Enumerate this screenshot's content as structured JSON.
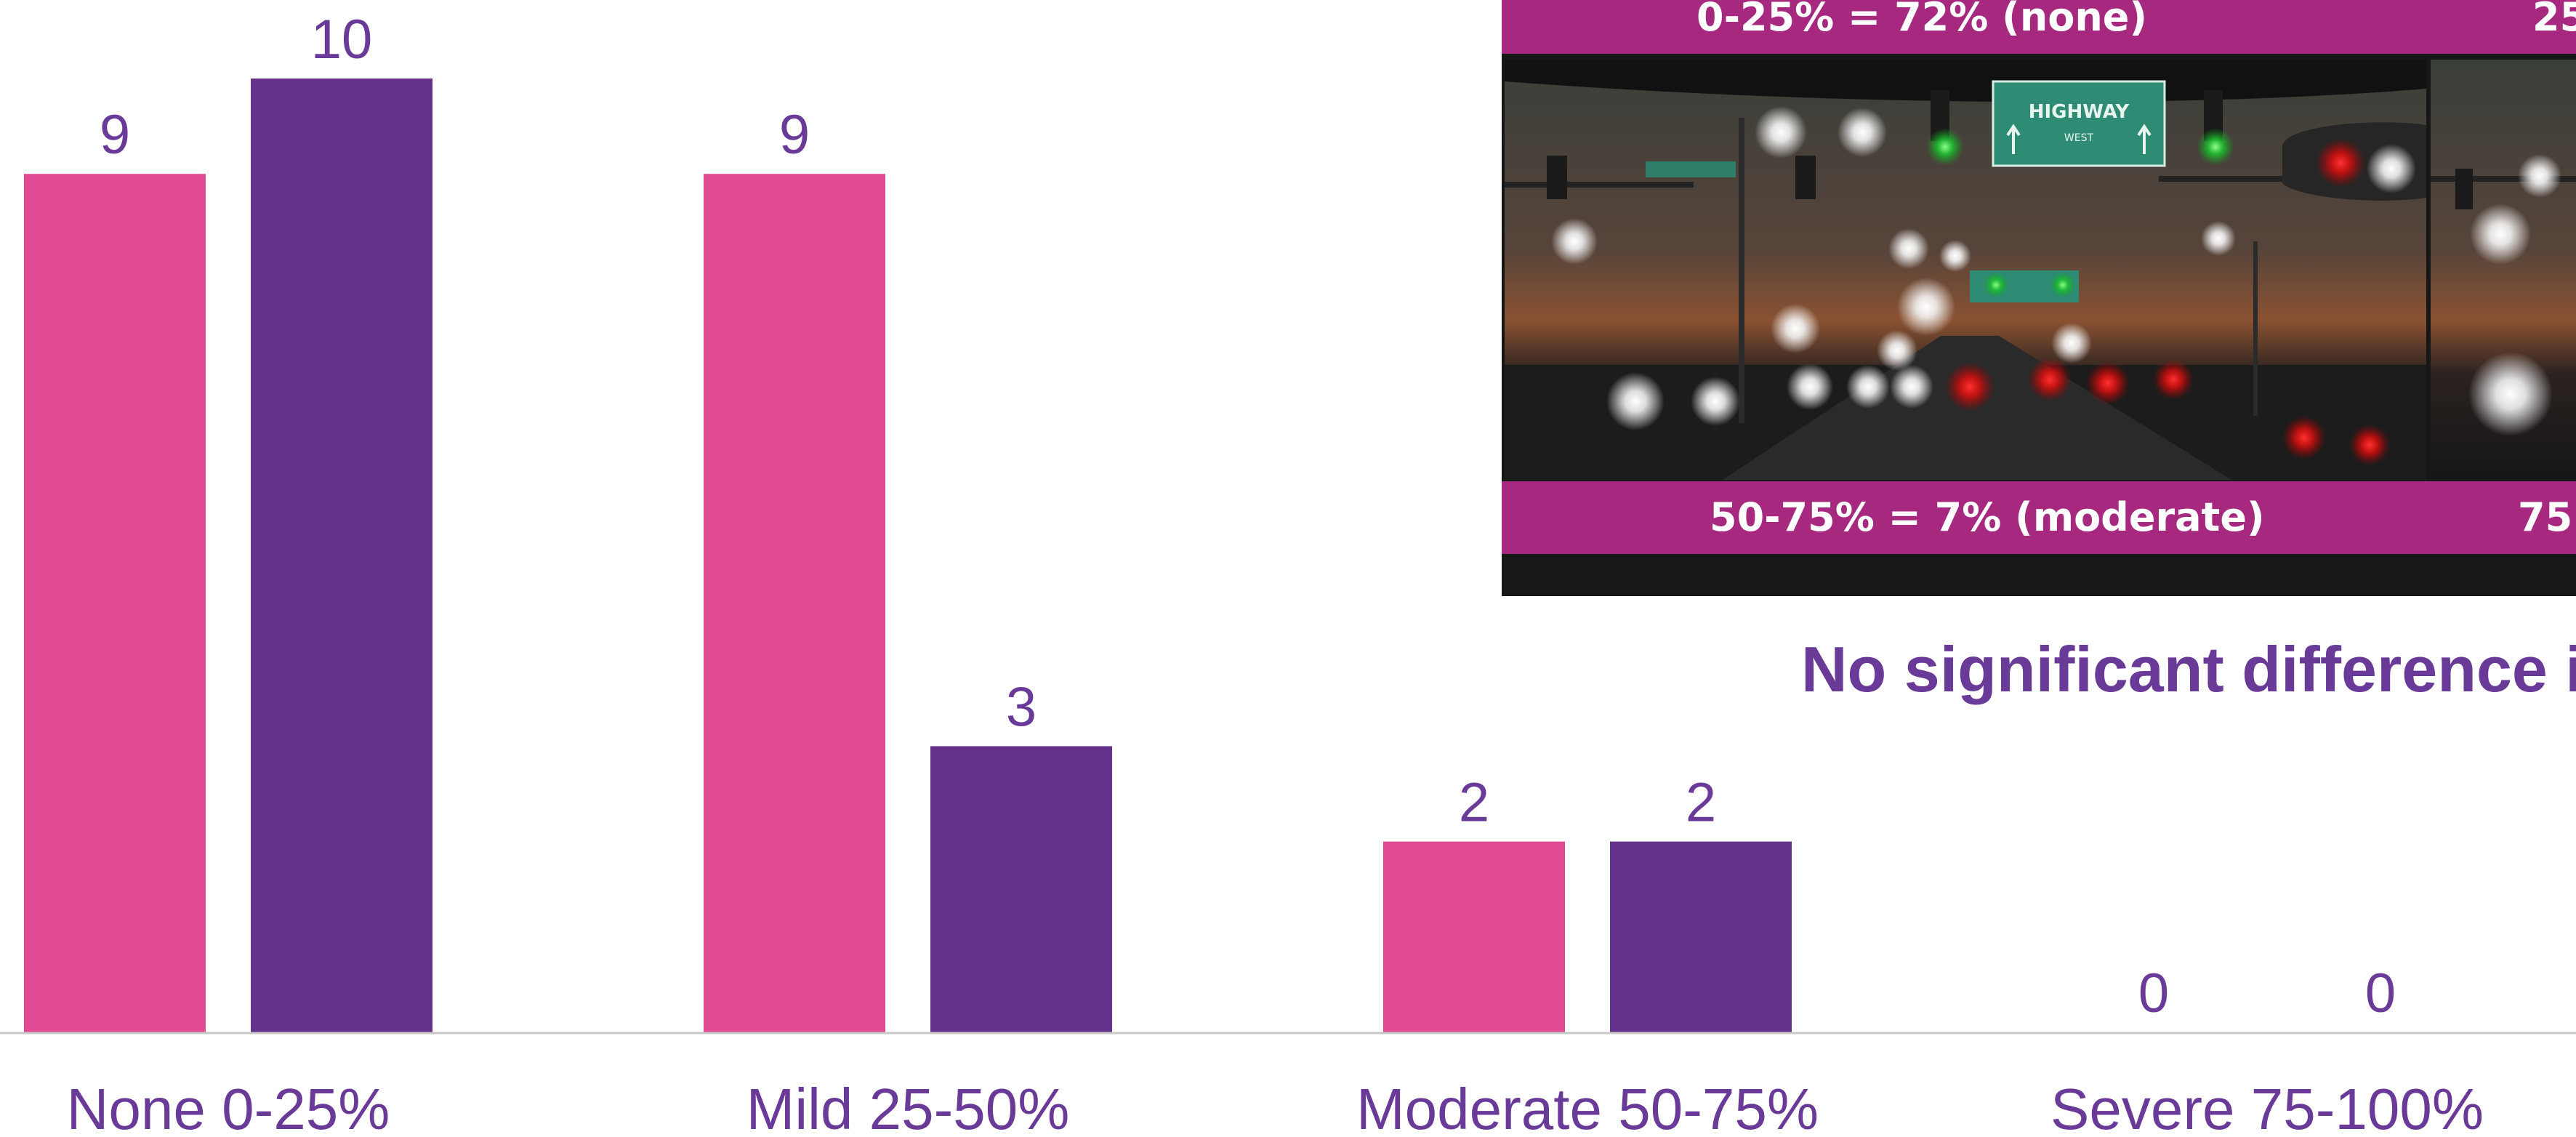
{
  "chart_data": {
    "type": "bar",
    "categories": [
      "None 0-25%",
      "Mild 25-50%",
      "Moderate 50-75%",
      "Severe 75-100%"
    ],
    "series": [
      {
        "values": [
          9,
          9,
          2,
          0
        ],
        "color": "#e04a92"
      },
      {
        "values": [
          10,
          3,
          2,
          0
        ],
        "color": "#64328a"
      }
    ],
    "ylim": [
      0,
      10
    ],
    "grid": false,
    "legend": "none"
  },
  "overlay": {
    "banner_top_left": "0-25% = 72% (none)",
    "banner_top_right": "25",
    "banner_bottom_left": "50-75% = 7% (moderate)",
    "banner_bottom_right": "75",
    "sign_main": "HIGHWAY",
    "sign_sub": "WEST",
    "conclusion": "No significant difference i"
  },
  "colors": {
    "label_purple": "#6a3a98",
    "banner_magenta": "#a6297f",
    "axis_line": "#c8c8c8"
  }
}
